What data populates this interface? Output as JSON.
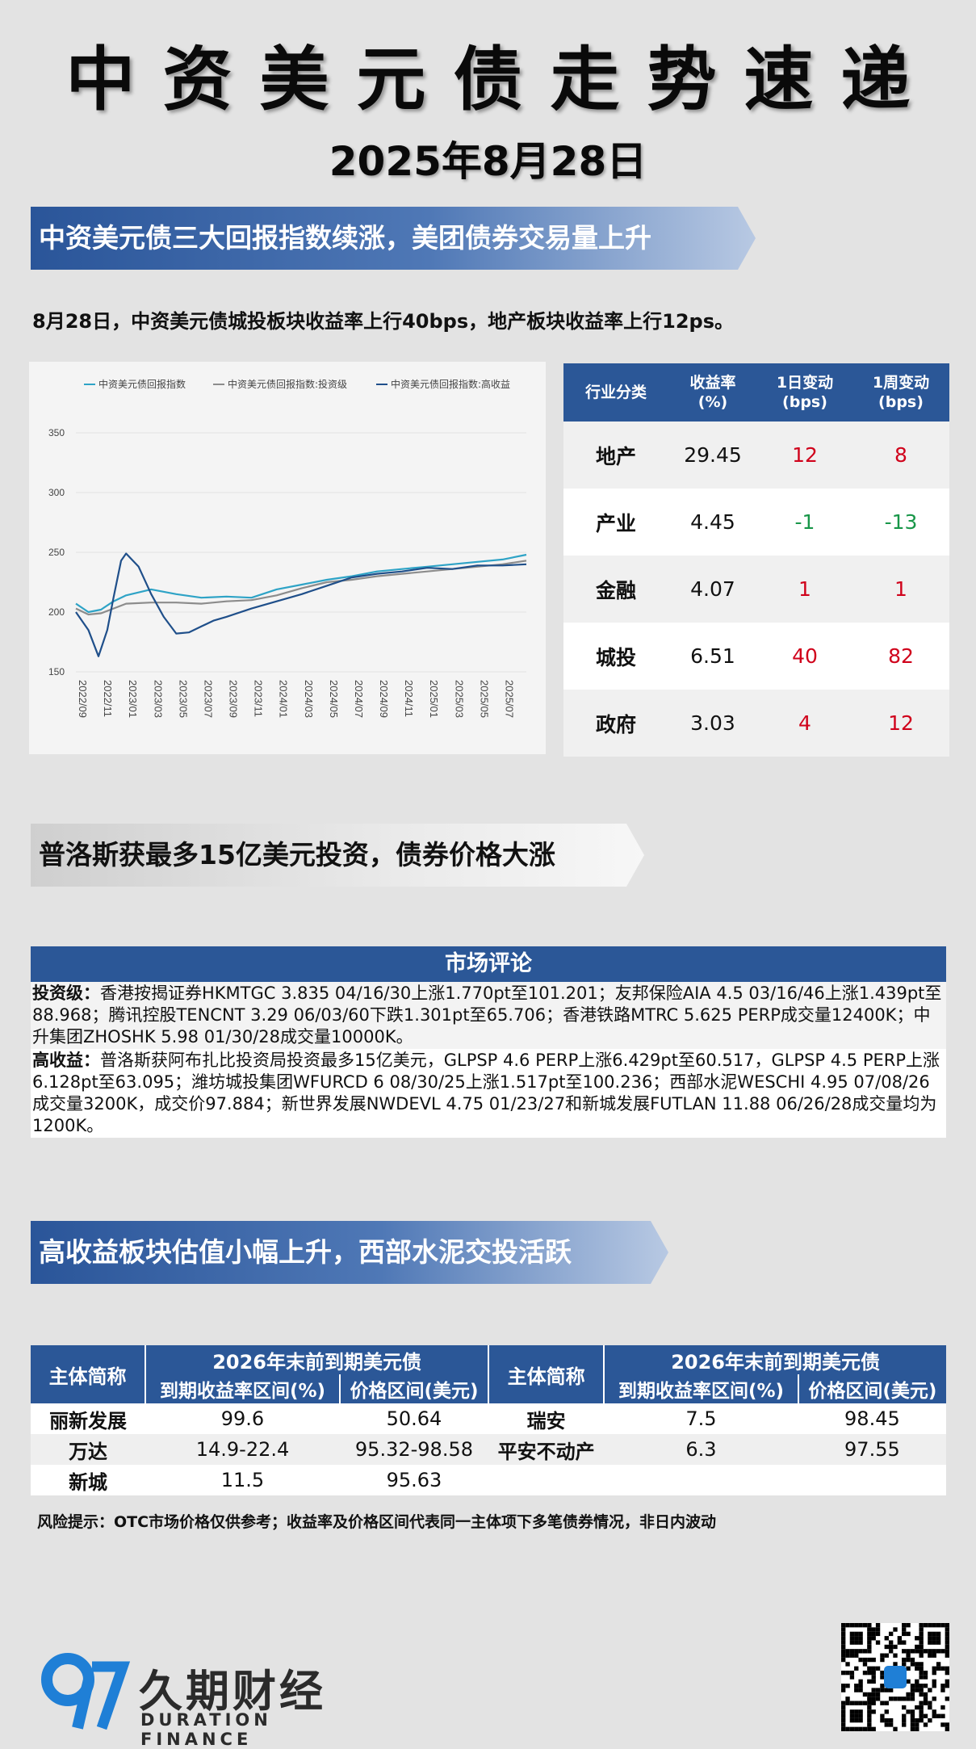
{
  "header": {
    "title": "中资美元债走势速递",
    "date": "2025年8月28日"
  },
  "section1": {
    "banner": "中资美元债三大回报指数续涨，美团债券交易量上升",
    "summary": "8月28日，中资美元债城投板块收益率上行40bps，地产板块收益率上行12ps。"
  },
  "chart_data": {
    "type": "line",
    "legend": [
      "中资美元债回报指数",
      "中资美元债回报指数:投资级",
      "中资美元债回报指数:高收益"
    ],
    "x_ticks": [
      "2022/09",
      "2022/11",
      "2023/01",
      "2023/03",
      "2023/05",
      "2023/07",
      "2023/09",
      "2023/11",
      "2024/01",
      "2024/03",
      "2024/05",
      "2024/07",
      "2024/09",
      "2024/11",
      "2025/01",
      "2025/03",
      "2025/05",
      "2025/07"
    ],
    "y_ticks": [
      150,
      200,
      250,
      300,
      350
    ],
    "ylim": [
      150,
      350
    ],
    "xlim": [
      0,
      35.9
    ],
    "series": [
      {
        "name": "中资美元债回报指数",
        "color": "#2ea3c6",
        "x": [
          0,
          1,
          2,
          3,
          4,
          6,
          8,
          10,
          12,
          14,
          16,
          18,
          20,
          22,
          24,
          26,
          28,
          30,
          32,
          34,
          35.9
        ],
        "y": [
          207,
          200,
          202,
          209,
          214,
          219,
          215,
          212,
          213,
          212,
          219,
          223,
          227,
          230,
          234,
          236,
          238,
          240,
          242,
          244,
          248
        ]
      },
      {
        "name": "中资美元债回报指数:投资级",
        "color": "#8c8c8c",
        "x": [
          0,
          1,
          2,
          3,
          4,
          6,
          8,
          10,
          12,
          14,
          16,
          18,
          20,
          22,
          24,
          26,
          28,
          30,
          32,
          34,
          35.9
        ],
        "y": [
          203,
          198,
          199,
          203,
          207,
          208,
          208,
          207,
          209,
          210,
          214,
          220,
          225,
          227,
          230,
          232,
          234,
          236,
          238,
          240,
          243
        ]
      },
      {
        "name": "中资美元债回报指数:高收益",
        "color": "#1f4f8a",
        "x": [
          0,
          1,
          1.8,
          2.5,
          3,
          3.6,
          4,
          5,
          6,
          7,
          8,
          9,
          10,
          11,
          12,
          14,
          16,
          18,
          20,
          22,
          24,
          26,
          28,
          30,
          32,
          34,
          35.9
        ],
        "y": [
          200,
          185,
          163,
          185,
          212,
          243,
          249,
          238,
          215,
          196,
          182,
          183,
          188,
          193,
          196,
          203,
          209,
          215,
          222,
          229,
          232,
          234,
          237,
          236,
          239,
          239,
          240
        ]
      }
    ]
  },
  "sector_table": {
    "headers": [
      "行业分类",
      "收益率\n(%)",
      "1日变动\n(bps)",
      "1周变动\n(bps)"
    ],
    "rows": [
      {
        "name": "地产",
        "yield": "29.45",
        "d1": "12",
        "w1": "8",
        "d1_dir": "up",
        "w1_dir": "up"
      },
      {
        "name": "产业",
        "yield": "4.45",
        "d1": "-1",
        "w1": "-13",
        "d1_dir": "down",
        "w1_dir": "down"
      },
      {
        "name": "金融",
        "yield": "4.07",
        "d1": "1",
        "w1": "1",
        "d1_dir": "up",
        "w1_dir": "up"
      },
      {
        "name": "城投",
        "yield": "6.51",
        "d1": "40",
        "w1": "82",
        "d1_dir": "up",
        "w1_dir": "up"
      },
      {
        "name": "政府",
        "yield": "3.03",
        "d1": "4",
        "w1": "12",
        "d1_dir": "up",
        "w1_dir": "up"
      }
    ]
  },
  "section2": {
    "banner": "普洛斯获最多15亿美元投资，债券价格大涨"
  },
  "commentary": {
    "header": "市场评论",
    "ig_label": "投资级：",
    "ig_text": "香港按揭证券HKMTGC 3.835 04/16/30上涨1.770pt至101.201；友邦保险AIA 4.5 03/16/46上涨1.439pt至88.968；腾讯控股TENCNT 3.29 06/03/60下跌1.301pt至65.706；香港铁路MTRC 5.625 PERP成交量12400K；中升集团ZHOSHK 5.98 01/30/28成交量10000K。",
    "hy_label": "高收益：",
    "hy_text": "普洛斯获阿布扎比投资局投资最多15亿美元，GLPSP 4.6 PERP上涨6.429pt至60.517，GLPSP 4.5 PERP上涨6.128pt至63.095；潍坊城投集团WFURCD 6 08/30/25上涨1.517pt至100.236；西部水泥WESCHI 4.95 07/08/26成交量3200K，成交价97.884；新世界发展NWDEVL 4.75 01/23/27和新城发展FUTLAN 11.88 06/26/28成交量均为1200K。"
  },
  "section3": {
    "banner": "高收益板块估值小幅上升，西部水泥交投活跃"
  },
  "bond_table": {
    "col_issuer": "主体简称",
    "group_header": "2026年末前到期美元债",
    "col_yield": "到期收益率区间(%)",
    "col_price": "价格区间(美元)",
    "left_rows": [
      {
        "name": "丽新发展",
        "yield": "99.6",
        "price": "50.64"
      },
      {
        "name": "万达",
        "yield": "14.9-22.4",
        "price": "95.32-98.58"
      },
      {
        "name": "新城",
        "yield": "11.5",
        "price": "95.63"
      }
    ],
    "right_rows": [
      {
        "name": "瑞安",
        "yield": "7.5",
        "price": "98.45"
      },
      {
        "name": "平安不动产",
        "yield": "6.3",
        "price": "97.55"
      },
      {
        "name": "",
        "yield": "",
        "price": ""
      }
    ]
  },
  "risk_note": "风险提示：OTC市场价格仅供参考；收益率及价格区间代表同一主体项下多笔债券情况，非日内波动",
  "footer": {
    "logo_cn": "久期财经",
    "logo_en": "DURATION FINANCE",
    "logo_brand_color": "#1f7fd6"
  }
}
